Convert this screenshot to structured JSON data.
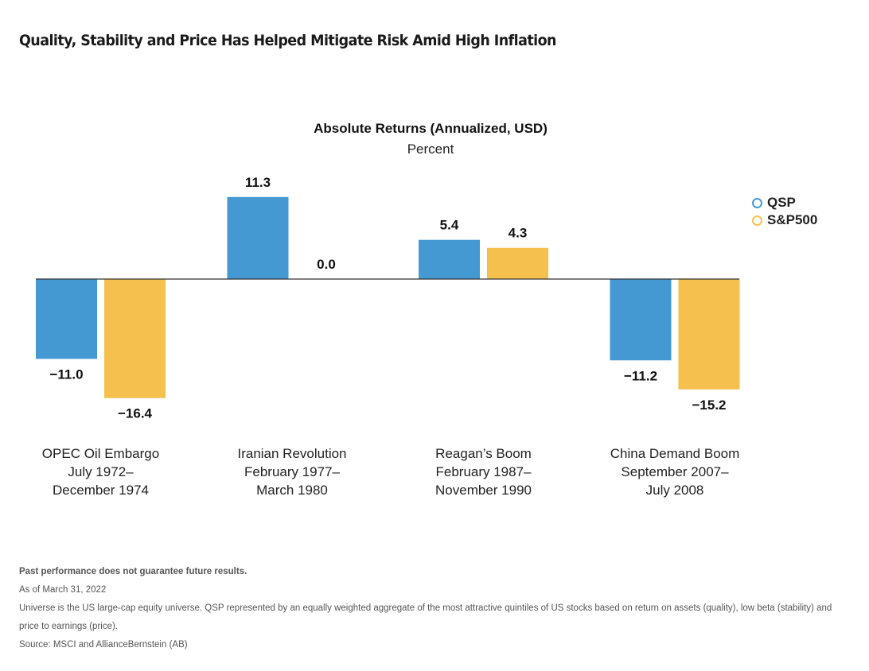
{
  "page": {
    "title": "Quality, Stability and Price Has Helped Mitigate Risk Amid High Inflation"
  },
  "chart_data": {
    "type": "bar",
    "title": "Absolute Returns (Annualized, USD)",
    "subtitle": "Percent",
    "xlabel": "",
    "ylabel": "Percent",
    "ylim": [
      -17,
      12
    ],
    "grid": false,
    "legend_position": "top-right",
    "categories": [
      [
        "OPEC Oil Embargo",
        "July 1972–",
        "December 1974"
      ],
      [
        "Iranian Revolution",
        "February 1977–",
        "March 1980"
      ],
      [
        "Reagan’s Boom",
        "February 1987–",
        "November 1990"
      ],
      [
        "China Demand Boom",
        "September 2007–",
        "July 2008"
      ]
    ],
    "series": [
      {
        "name": "QSP",
        "color": "#4599d2",
        "values": [
          -11.0,
          11.3,
          5.4,
          -11.2
        ],
        "labels": [
          "−11.0",
          "11.3",
          "5.4",
          "−11.2"
        ]
      },
      {
        "name": "S&P500",
        "color": "#f5c04e",
        "values": [
          -16.4,
          0.0,
          4.3,
          -15.2
        ],
        "labels": [
          "−16.4",
          "0.0",
          "4.3",
          "−15.2"
        ]
      }
    ]
  },
  "footnotes": {
    "disclaimer": "Past performance does not guarantee future results.",
    "as_of": "As of March 31, 2022",
    "universe": "Universe is the US large-cap equity universe. QSP represented by an equally weighted aggregate of the most attractive quintiles of US stocks based on return on assets (quality), low beta (stability) and price to earnings (price).",
    "source": "Source: MSCI and AllianceBernstein (AB)"
  }
}
